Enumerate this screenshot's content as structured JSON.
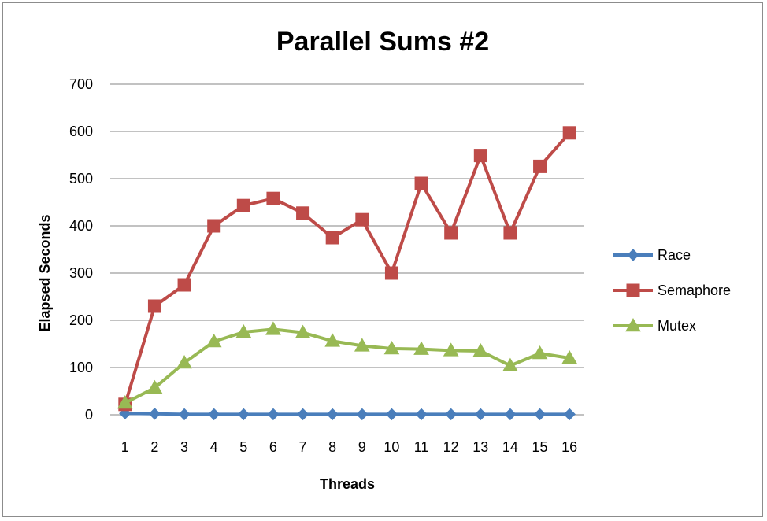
{
  "chart_data": {
    "type": "line",
    "title": "Parallel Sums #2",
    "xlabel": "Threads",
    "ylabel": "Elapsed Seconds",
    "categories": [
      "1",
      "2",
      "3",
      "4",
      "5",
      "6",
      "7",
      "8",
      "9",
      "10",
      "11",
      "12",
      "13",
      "14",
      "15",
      "16"
    ],
    "ylim": [
      0,
      700
    ],
    "yticks": [
      0,
      100,
      200,
      300,
      400,
      500,
      600,
      700
    ],
    "grid": "horizontal",
    "legend_position": "right",
    "series": [
      {
        "name": "Race",
        "color": "#4a7ebb",
        "marker": "diamond",
        "values": [
          3,
          2,
          1,
          1,
          1,
          1,
          1,
          1,
          1,
          1,
          1,
          1,
          1,
          1,
          1,
          1
        ]
      },
      {
        "name": "Semaphore",
        "color": "#be4b48",
        "marker": "square",
        "values": [
          22,
          230,
          275,
          400,
          443,
          458,
          427,
          375,
          413,
          300,
          490,
          385,
          549,
          385,
          526,
          597
        ]
      },
      {
        "name": "Mutex",
        "color": "#98b954",
        "marker": "triangle",
        "values": [
          25,
          57,
          110,
          155,
          175,
          181,
          174,
          156,
          146,
          140,
          139,
          136,
          135,
          104,
          130,
          120
        ]
      }
    ]
  }
}
